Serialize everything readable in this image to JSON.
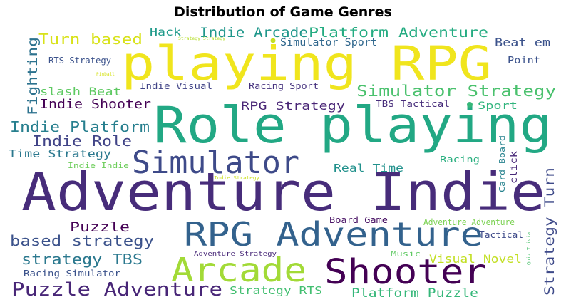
{
  "chart_data": {
    "type": "wordcloud",
    "title": "Distribution of Game Genres",
    "colormap": "viridis",
    "words": [
      {
        "text": "Adventure Indie",
        "color": "#472c7a"
      },
      {
        "text": "Role playing",
        "color": "#22a884"
      },
      {
        "text": "playing RPG",
        "color": "#f0e51d"
      },
      {
        "text": "RPG Adventure",
        "color": "#33628d"
      },
      {
        "text": "Shooter",
        "color": "#440154"
      },
      {
        "text": "Simulator",
        "color": "#3e4a89"
      },
      {
        "text": "Arcade",
        "color": "#a2da37"
      },
      {
        "text": "Puzzle Adventure",
        "color": "#482677"
      },
      {
        "text": "Simulator Strategy",
        "color": "#4ac16d"
      },
      {
        "text": "Platform Adventure",
        "color": "#25ac82"
      },
      {
        "text": "Indie Arcade",
        "color": "#1f978b"
      },
      {
        "text": "Turn based",
        "color": "#d8e219"
      },
      {
        "text": "Indie Platform",
        "color": "#277f8e"
      },
      {
        "text": "Indie Role",
        "color": "#414487"
      },
      {
        "text": "Indie Shooter",
        "color": "#440154"
      },
      {
        "text": "based strategy",
        "color": "#3b528b"
      },
      {
        "text": "strategy TBS",
        "color": "#2a788e"
      },
      {
        "text": "Strategy Turn",
        "color": "#3e4a89"
      },
      {
        "text": "Platform Puzzle",
        "color": "#35b779"
      },
      {
        "text": "Visual Novel",
        "color": "#c2df23"
      },
      {
        "text": "Puzzle",
        "color": "#440154"
      },
      {
        "text": "RPG Strategy",
        "color": "#482475"
      },
      {
        "text": "Real Time",
        "color": "#21918c"
      },
      {
        "text": "Strategy RTS",
        "color": "#43bf71"
      },
      {
        "text": "Fighting",
        "color": "#2c728e"
      },
      {
        "text": "slash Beat",
        "color": "#5ec962"
      },
      {
        "text": "Beat em",
        "color": "#3b528b"
      },
      {
        "text": "Time Strategy",
        "color": "#2a788e"
      },
      {
        "text": "Hack",
        "color": "#1f9a8a"
      },
      {
        "text": "Simulator Sport",
        "color": "#31688e"
      },
      {
        "text": "Sport",
        "color": "#2fb47c"
      },
      {
        "text": "Point",
        "color": "#3b528b"
      },
      {
        "text": "RTS Strategy",
        "color": "#3b528b"
      },
      {
        "text": "Indie Visual",
        "color": "#414487"
      },
      {
        "text": "Racing Sport",
        "color": "#46327e"
      },
      {
        "text": "TBS Tactical",
        "color": "#472d7b"
      },
      {
        "text": "Indie Indie",
        "color": "#6ccd5a"
      },
      {
        "text": "Racing",
        "color": "#29af7f"
      },
      {
        "text": "Card Board",
        "color": "#26828e"
      },
      {
        "text": "click",
        "color": "#482878"
      },
      {
        "text": "Board Game",
        "color": "#471063"
      },
      {
        "text": "Adventure Adventure",
        "color": "#7ad151"
      },
      {
        "text": "Tactical",
        "color": "#3e4a89"
      },
      {
        "text": "Music",
        "color": "#5ec962"
      },
      {
        "text": "Adventure Strategy",
        "color": "#482878"
      },
      {
        "text": "Racing Simulator",
        "color": "#3b528b"
      },
      {
        "text": "Indie Strategy",
        "color": "#cae11f"
      },
      {
        "text": "Strategy Strategy",
        "color": "#b5de2b"
      },
      {
        "text": "Pinball",
        "color": "#d5e21a"
      },
      {
        "text": "Quiz Trivia",
        "color": "#4ac16d"
      }
    ]
  }
}
